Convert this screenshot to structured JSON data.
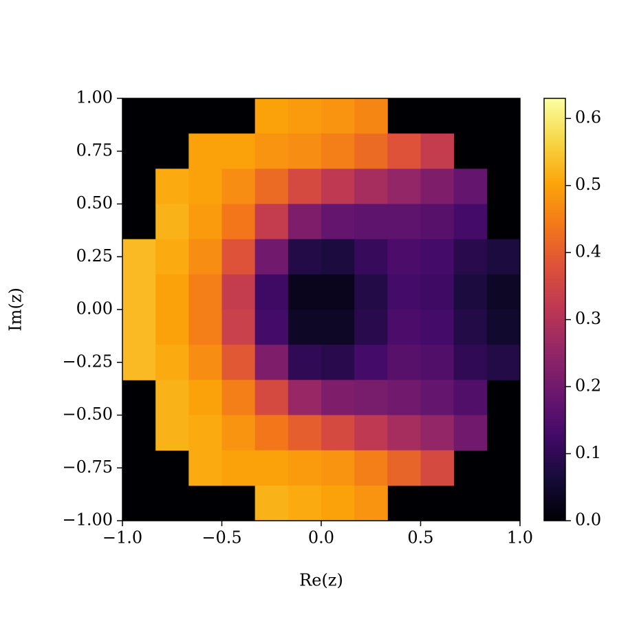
{
  "chart_data": {
    "type": "heatmap",
    "xlabel": "Re(z)",
    "ylabel": "Im(z)",
    "colormap": "inferno",
    "xlim": [
      -1,
      1
    ],
    "ylim": [
      -1,
      1
    ],
    "xticks": [
      {
        "value": -1,
        "label": "−1.0"
      },
      {
        "value": -0.5,
        "label": "−0.5"
      },
      {
        "value": 0,
        "label": "0.0"
      },
      0.5,
      {
        "value": 1,
        "label": "1.0"
      }
    ],
    "yticks": [
      {
        "value": -1,
        "label": "−1.00"
      },
      {
        "value": -0.75,
        "label": "−0.75"
      },
      {
        "value": -0.5,
        "label": "−0.50"
      },
      {
        "value": -0.25,
        "label": "−0.25"
      },
      {
        "value": 0,
        "label": "0.00"
      },
      0.25,
      {
        "value": 0.5,
        "label": "0.50"
      },
      0.75,
      {
        "value": 1,
        "label": "1.00"
      }
    ],
    "clim": [
      0,
      0.63
    ],
    "cticks": [
      {
        "value": 0,
        "label": "0.0"
      },
      0.1,
      0.2,
      0.3,
      0.4,
      0.5,
      0.6
    ],
    "z": [
      [
        null,
        null,
        null,
        null,
        0.5,
        0.49,
        0.48,
        0.46,
        null,
        null,
        null,
        null
      ],
      [
        null,
        null,
        0.5,
        0.5,
        0.48,
        0.47,
        0.45,
        0.42,
        0.38,
        0.33,
        null,
        null
      ],
      [
        null,
        0.51,
        0.5,
        0.47,
        0.42,
        0.36,
        0.32,
        0.28,
        0.25,
        0.22,
        0.18,
        null
      ],
      [
        null,
        0.52,
        0.49,
        0.44,
        0.33,
        0.22,
        0.18,
        0.17,
        0.17,
        0.16,
        0.13,
        null
      ],
      [
        0.53,
        0.51,
        0.47,
        0.38,
        0.2,
        0.08,
        0.07,
        0.11,
        0.14,
        0.13,
        0.09,
        0.07
      ],
      [
        0.53,
        0.5,
        0.45,
        0.33,
        0.12,
        0.03,
        0.03,
        0.08,
        0.13,
        0.12,
        0.07,
        0.04
      ],
      [
        0.53,
        0.5,
        0.45,
        0.34,
        0.13,
        0.04,
        0.04,
        0.09,
        0.14,
        0.13,
        0.08,
        0.05
      ],
      [
        0.53,
        0.51,
        0.47,
        0.39,
        0.22,
        0.1,
        0.09,
        0.13,
        0.16,
        0.15,
        0.1,
        0.08
      ],
      [
        null,
        0.52,
        0.5,
        0.45,
        0.36,
        0.26,
        0.22,
        0.21,
        0.2,
        0.18,
        0.15,
        null
      ],
      [
        null,
        0.52,
        0.51,
        0.48,
        0.44,
        0.4,
        0.36,
        0.32,
        0.28,
        0.25,
        0.2,
        null
      ],
      [
        null,
        null,
        0.51,
        0.5,
        0.5,
        0.49,
        0.48,
        0.45,
        0.41,
        0.36,
        null,
        null
      ],
      [
        null,
        null,
        null,
        null,
        0.52,
        0.51,
        0.5,
        0.48,
        null,
        null,
        null,
        null
      ]
    ]
  }
}
